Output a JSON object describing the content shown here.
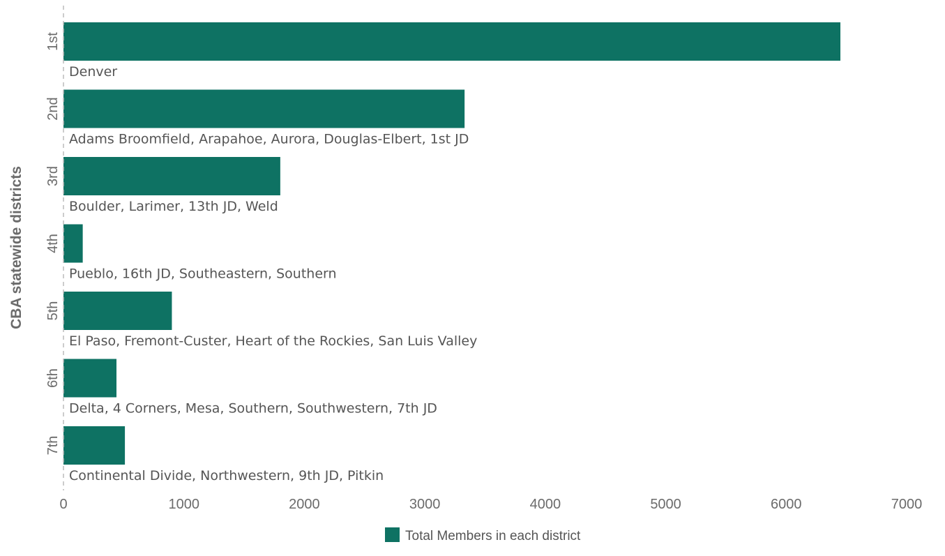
{
  "chart_data": {
    "type": "bar",
    "orientation": "horizontal",
    "ylabel": "CBA statewide districts",
    "xlabel": "",
    "xlim": [
      0,
      7000
    ],
    "xticks": [
      0,
      1000,
      2000,
      3000,
      4000,
      5000,
      6000,
      7000
    ],
    "grid": false,
    "legend_position": "bottom",
    "categories": [
      "1st",
      "2nd",
      "3rd",
      "4th",
      "5th",
      "6th",
      "7th"
    ],
    "bar_labels": [
      "Denver",
      "Adams Broomfield, Arapahoe, Aurora, Douglas-Elbert, 1st JD",
      "Boulder, Larimer, 13th JD, Weld",
      "Pueblo, 16th JD, Southeastern, Southern",
      "El Paso, Fremont-Custer, Heart of the Rockies, San Luis Valley",
      "Delta, 4 Corners, Mesa, Southern, Southwestern, 7th JD",
      "Continental Divide, Northwestern, 9th JD, Pitkin"
    ],
    "series": [
      {
        "name": "Total Members in each district",
        "color": "#0e7263",
        "values": [
          6450,
          3330,
          1800,
          160,
          900,
          440,
          510
        ]
      }
    ]
  }
}
